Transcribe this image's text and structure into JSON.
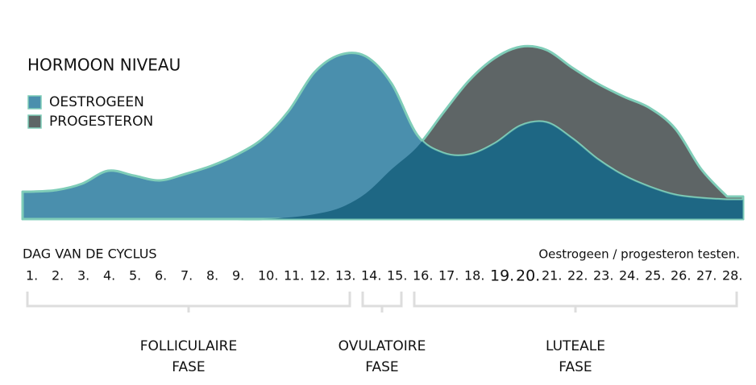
{
  "chart_data": {
    "type": "area",
    "title": "HORMOON NIVEAU",
    "x_label": "DAG VAN DE CYCLUS",
    "categories": [
      "1.",
      "2.",
      "3.",
      "4.",
      "5.",
      "6.",
      "7.",
      "8.",
      "9.",
      "10.",
      "11.",
      "12.",
      "13.",
      "14.",
      "15.",
      "16.",
      "17.",
      "18.",
      "19.",
      "20.",
      "21.",
      "22.",
      "23.",
      "24.",
      "25.",
      "26.",
      "27.",
      "28."
    ],
    "series": [
      {
        "name": "PROGESTERON",
        "color": "#5e6566",
        "values": [
          0,
          0,
          0,
          0,
          0,
          0,
          0,
          0,
          0,
          0,
          1,
          3,
          7,
          16,
          31,
          45,
          66,
          86,
          100,
          107,
          105,
          94,
          84,
          76,
          69,
          56,
          31,
          14
        ]
      },
      {
        "name": "OESTROGEEN",
        "color": "#4a8fad",
        "values": [
          17,
          18,
          22,
          30,
          27,
          24,
          28,
          33,
          40,
          50,
          67,
          91,
          102,
          101,
          84,
          52,
          41,
          40,
          47,
          58,
          60,
          50,
          37,
          27,
          20,
          15,
          13,
          12
        ]
      }
    ],
    "overlap_color": "#1e6784",
    "outline_color": "#7fcdb8",
    "ylim": [
      0,
      110
    ],
    "highlight": {
      "label": "Oestrogeen / progesteron testen.",
      "days": [
        19,
        20
      ],
      "color": "#7fcdb8"
    },
    "phases": [
      {
        "lines": [
          "FOLLICULAIRE",
          "FASE"
        ],
        "from": 1,
        "to": 13
      },
      {
        "lines": [
          "OVULATOIRE",
          "FASE"
        ],
        "from": 14,
        "to": 15
      },
      {
        "lines": [
          "LUTEALE",
          "FASE"
        ],
        "from": 16,
        "to": 28
      }
    ]
  }
}
